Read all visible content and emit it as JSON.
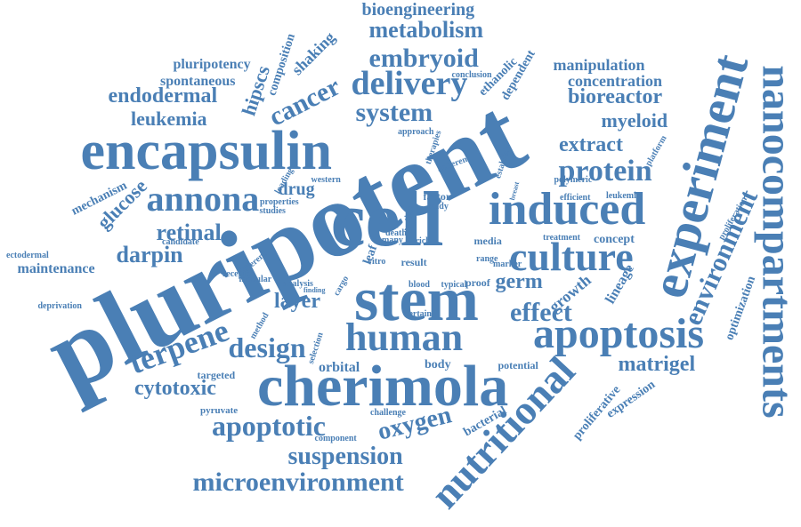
{
  "color": "#4a7fb5",
  "words": [
    "pluripotent",
    "cell",
    "stem",
    "encapsulin",
    "experiment",
    "nanocompartments",
    "cherimola",
    "induced",
    "culture",
    "apoptosis",
    "human",
    "nutritional",
    "protein",
    "metabolism",
    "delivery",
    "embryoid",
    "system",
    "annona",
    "retinal",
    "darpin",
    "terpene",
    "design",
    "apoptotic",
    "oxygen",
    "suspension",
    "microenvironment",
    "cancer",
    "cytotoxic",
    "matrigel",
    "environment",
    "effect",
    "germ",
    "layer",
    "extract",
    "bioreactor",
    "myeloid",
    "leukemia",
    "endodermal",
    "glucose",
    "hipscs",
    "bioengineering",
    "manipulation",
    "concentration",
    "pluripotency",
    "spontaneous",
    "shaking",
    "composition",
    "growth",
    "lineage",
    "optimization",
    "drug",
    "body",
    "orbital",
    "leaf",
    "proliferative",
    "expression",
    "bacterial",
    "mechanism",
    "maintenance",
    "deprivation",
    "targeted",
    "pyruvate",
    "potential",
    "challenge",
    "component",
    "proof",
    "media",
    "concept",
    "treatment",
    "efficient",
    "leukemic",
    "platform",
    "proliferation",
    "polymeric",
    "ethanolic",
    "dependent",
    "conclusion",
    "approach",
    "therapies",
    "adherent",
    "establish",
    "factor",
    "study",
    "line",
    "rich",
    "result",
    "range",
    "blood",
    "typical",
    "cargo",
    "finding",
    "analysis",
    "modular",
    "different",
    "receptor",
    "candidate",
    "ectodermal",
    "western",
    "properties",
    "studies",
    "loading",
    "time",
    "death",
    "many",
    "vitro",
    "marker",
    "breast",
    "certain",
    "method",
    "selection"
  ]
}
